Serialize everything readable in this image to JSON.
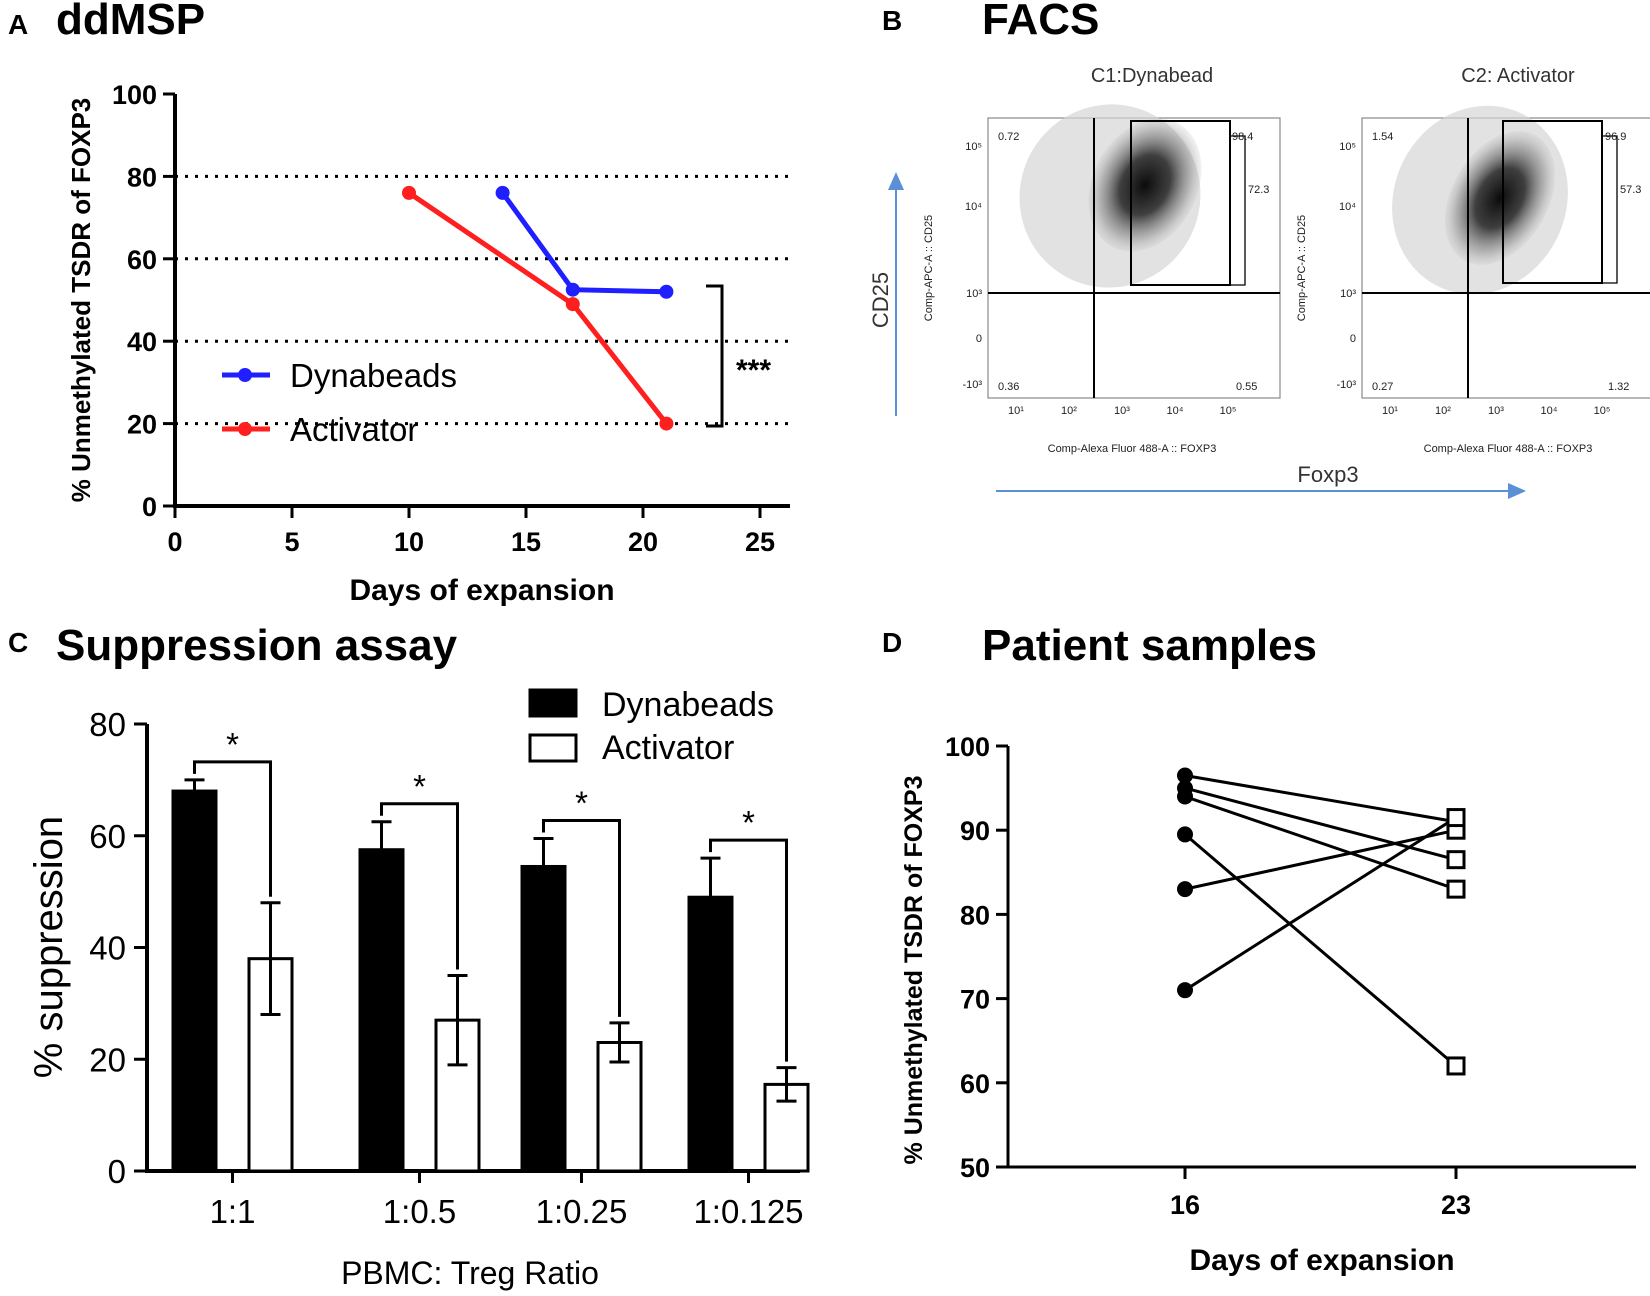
{
  "panels": {
    "a": {
      "letter": "A",
      "title": "ddMSP"
    },
    "b": {
      "letter": "B",
      "title": "FACS"
    },
    "c": {
      "letter": "C",
      "title": "Suppression assay"
    },
    "d": {
      "letter": "D",
      "title": "Patient samples"
    }
  },
  "colors": {
    "dynabeads": "#1f1fff",
    "activator": "#ff1f1f",
    "axis": "#000000"
  },
  "chart_data": [
    {
      "id": "A",
      "type": "line",
      "title": "ddMSP",
      "xlabel": "Days of expansion",
      "ylabel": "% Unmethylated TSDR of FOXP3",
      "xlim": [
        0,
        25
      ],
      "ylim": [
        0,
        100
      ],
      "xticks": [
        "0",
        "5",
        "10",
        "15",
        "20",
        "25"
      ],
      "yticks": [
        "0",
        "20",
        "40",
        "60",
        "80",
        "100"
      ],
      "gridlines_y": [
        20,
        40,
        60,
        80
      ],
      "series": [
        {
          "name": "Dynabeads",
          "x": [
            14,
            17,
            21
          ],
          "y": [
            76,
            52.5,
            52
          ]
        },
        {
          "name": "Activator",
          "x": [
            10,
            17,
            21
          ],
          "y": [
            76,
            49,
            20
          ]
        }
      ],
      "annotation": "***"
    },
    {
      "id": "B",
      "type": "scatter",
      "title": "FACS",
      "xlabel": "Foxp3",
      "ylabel": "CD25",
      "plots": [
        {
          "title": "C1:Dynabead",
          "q_top_left": "0.72",
          "gate_top": "98.4",
          "gate_right": "72.3",
          "q_bottom_left": "0.36",
          "q_bottom_right": "0.55"
        },
        {
          "title": "C2: Activator",
          "q_top_left": "1.54",
          "gate_top": "96.9",
          "gate_right": "57.3",
          "q_bottom_left": "0.27",
          "q_bottom_right": "1.32"
        }
      ],
      "plot_xlabel": "Comp-Alexa Fluor 488-A :: FOXP3",
      "plot_ylabel": "Comp-APC-A :: CD25",
      "x_tick_labels": [
        "10¹",
        "10²",
        "10³",
        "10⁴",
        "10⁵"
      ],
      "y_tick_labels": [
        "10⁵",
        "10⁴",
        "10³",
        "0",
        "-10³"
      ]
    },
    {
      "id": "C",
      "type": "bar",
      "title": "Suppression assay",
      "xlabel": "PBMC: Treg Ratio",
      "ylabel": "% suppression",
      "ylim": [
        0,
        80
      ],
      "yticks": [
        "0",
        "20",
        "40",
        "60",
        "80"
      ],
      "categories": [
        "1:1",
        "1:0.5",
        "1:0.25",
        "1:0.125"
      ],
      "series": [
        {
          "name": "Dynabeads",
          "values": [
            68,
            57.5,
            54.5,
            49
          ],
          "errors": [
            2,
            5,
            5,
            7
          ]
        },
        {
          "name": "Activator",
          "values": [
            38,
            27,
            23,
            15.5
          ],
          "errors": [
            10,
            8,
            3.5,
            3
          ]
        }
      ],
      "significance": [
        "*",
        "*",
        "*",
        "*"
      ]
    },
    {
      "id": "D",
      "type": "line",
      "title": "Patient samples",
      "xlabel": "Days of expansion",
      "ylabel": "% Unmethylated TSDR of FOXP3",
      "ylim": [
        50,
        100
      ],
      "yticks": [
        "50",
        "60",
        "70",
        "80",
        "90",
        "100"
      ],
      "xticks": [
        "16",
        "23"
      ],
      "pairs": [
        {
          "day16": 96.5,
          "day23": 91
        },
        {
          "day16": 95,
          "day23": 86.5
        },
        {
          "day16": 94,
          "day23": 83
        },
        {
          "day16": 89.5,
          "day23": 62
        },
        {
          "day16": 83,
          "day23": 90
        },
        {
          "day16": 71,
          "day23": 91.5
        }
      ]
    }
  ]
}
